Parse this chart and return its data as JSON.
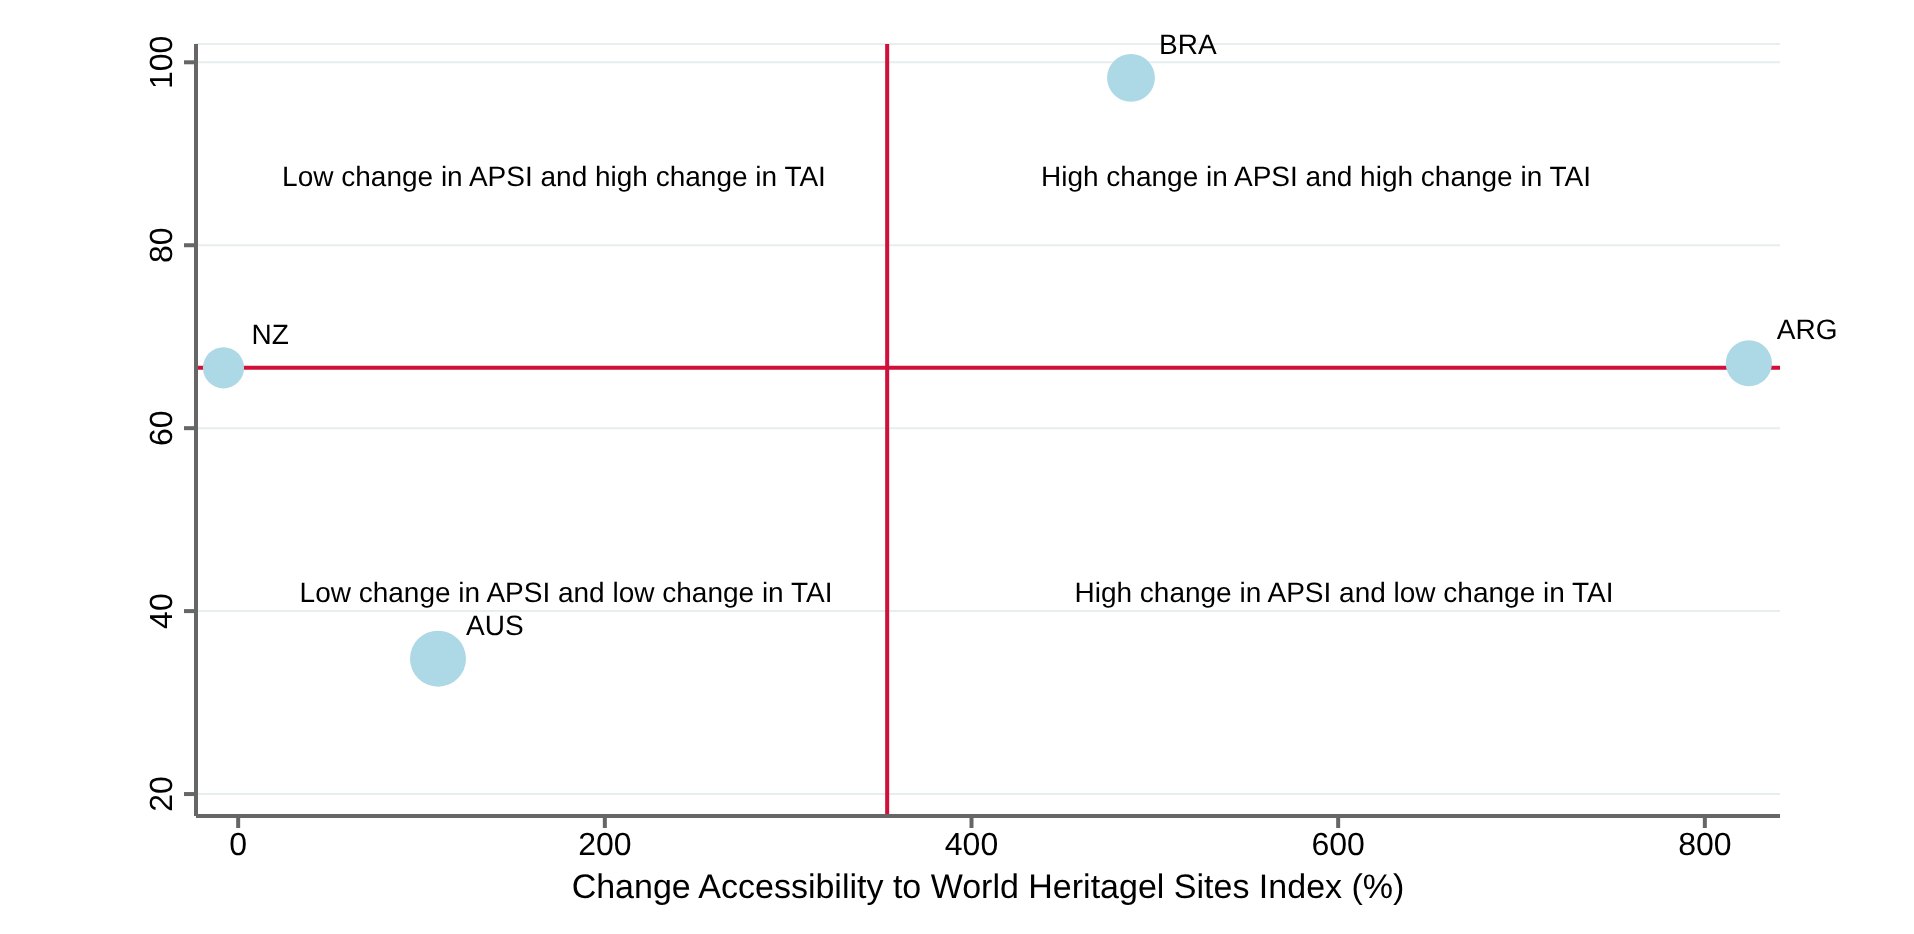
{
  "chart_data": {
    "type": "bubble",
    "xlabel": "Change Accessibility to World Heritagel Sites Index (%)",
    "series": [
      {
        "name": "NZ",
        "color": "#add8e6",
        "x": [
          -8
        ],
        "values": [
          66.6
        ],
        "sizes": [
          0.54
        ]
      },
      {
        "name": "AUS",
        "color": "#add8e6",
        "x": [
          109
        ],
        "values": [
          34.8
        ],
        "sizes": [
          1
        ]
      },
      {
        "name": "BRA",
        "color": "#add8e6",
        "x": [
          487
        ],
        "values": [
          98.3
        ],
        "sizes": [
          0.73
        ]
      },
      {
        "name": "ARG",
        "color": "#add8e6",
        "x": [
          824
        ],
        "values": [
          67.1
        ],
        "sizes": [
          0.68
        ]
      }
    ],
    "xlim": [
      -23,
      841
    ],
    "xticks": [
      0,
      200,
      400,
      600,
      800
    ],
    "ylim": [
      17.6,
      102
    ],
    "yticks": [
      20,
      40,
      60,
      80,
      100
    ],
    "grid": "y",
    "legend": false,
    "marker": "circle",
    "ref_lines": [
      {
        "axis": "x",
        "value": 354,
        "color": "#d0103a"
      },
      {
        "axis": "y",
        "value": 66.6,
        "color": "#d0103a"
      }
    ],
    "annotations": [
      "Low change in APSI and high change in TAI",
      "High change in APSI and high change in TAI",
      "Low change in APSI and low change in TAI",
      "High change in APSI and low change in TAI"
    ]
  }
}
